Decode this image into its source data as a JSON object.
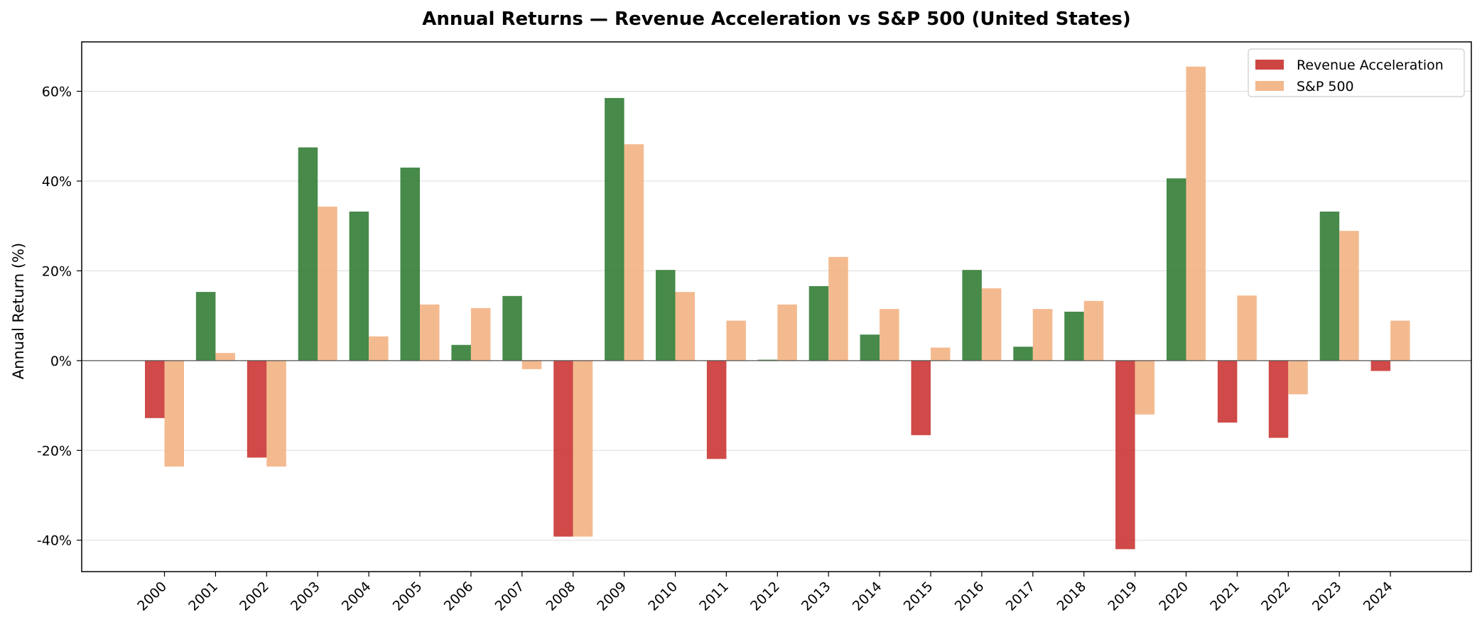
{
  "chart_data": {
    "type": "bar",
    "title": "Annual Returns — Revenue Acceleration vs S&P 500 (United States)",
    "ylabel": "Annual Return (%)",
    "xlabel": "",
    "ylim": [
      -47,
      71
    ],
    "yticks": [
      -40,
      -20,
      0,
      20,
      40,
      60
    ],
    "ytick_labels": [
      "-40%",
      "-20%",
      "0%",
      "20%",
      "40%",
      "60%"
    ],
    "grid": "horizontal",
    "legend_position": "top-right",
    "categories": [
      "2000",
      "2001",
      "2002",
      "2003",
      "2004",
      "2005",
      "2006",
      "2007",
      "2008",
      "2009",
      "2010",
      "2011",
      "2012",
      "2013",
      "2014",
      "2015",
      "2016",
      "2017",
      "2018",
      "2019",
      "2020",
      "2021",
      "2022",
      "2023",
      "2024"
    ],
    "series": [
      {
        "name": "Revenue Acceleration",
        "legend_color": "#c8312f",
        "positive_color": "#2d7a31",
        "negative_color": "#c8312f",
        "values": [
          -12.8,
          15.3,
          -21.6,
          47.5,
          33.2,
          43.0,
          3.5,
          14.4,
          -39.2,
          58.5,
          20.2,
          -21.9,
          0.2,
          16.6,
          5.8,
          -16.6,
          20.2,
          3.1,
          10.9,
          -42.0,
          40.6,
          -13.8,
          -17.2,
          33.2,
          -2.3
        ]
      },
      {
        "name": "S&P 500",
        "legend_color": "#f2b07f",
        "positive_color": "#f2b07f",
        "negative_color": "#f2b07f",
        "values": [
          -23.6,
          1.7,
          -23.6,
          34.3,
          5.4,
          12.5,
          11.7,
          -1.9,
          -39.2,
          48.2,
          15.3,
          8.9,
          12.5,
          23.1,
          11.5,
          2.9,
          16.1,
          11.5,
          13.3,
          -12.0,
          65.5,
          14.5,
          -7.5,
          28.9,
          8.9
        ]
      }
    ]
  }
}
